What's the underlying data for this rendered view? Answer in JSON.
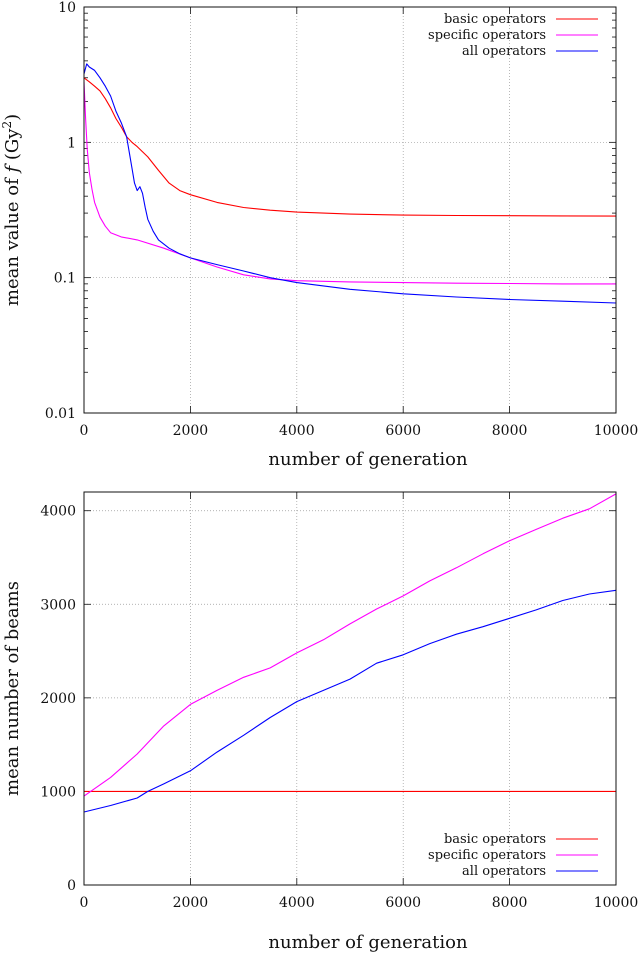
{
  "chart_data": [
    {
      "type": "line",
      "xlabel": "number of generation",
      "ylabel_parts": [
        "mean value of ",
        "f",
        " (Gy",
        "2",
        ")"
      ],
      "xlim": [
        0,
        10000
      ],
      "ylim": [
        0.01,
        10
      ],
      "yscale": "log",
      "grid": true,
      "legend": "top-right",
      "xticks": [
        0,
        2000,
        4000,
        6000,
        8000,
        10000
      ],
      "xtick_labels": [
        "0",
        "2000",
        "4000",
        "6000",
        "8000",
        "10000"
      ],
      "yticks": [
        0.01,
        0.1,
        1,
        10
      ],
      "ytick_labels": [
        "0.01",
        "0.1",
        "1",
        "10"
      ],
      "series": [
        {
          "name": "basic operators",
          "color": "#ff0000",
          "x": [
            0,
            100,
            200,
            300,
            400,
            500,
            600,
            700,
            800,
            900,
            1000,
            1200,
            1400,
            1600,
            1800,
            2000,
            2500,
            3000,
            3500,
            4000,
            5000,
            6000,
            7000,
            8000,
            9000,
            10000
          ],
          "y": [
            3.0,
            2.8,
            2.6,
            2.4,
            2.1,
            1.8,
            1.5,
            1.3,
            1.1,
            1.0,
            0.93,
            0.78,
            0.62,
            0.5,
            0.44,
            0.41,
            0.36,
            0.33,
            0.315,
            0.305,
            0.295,
            0.29,
            0.288,
            0.287,
            0.286,
            0.285
          ]
        },
        {
          "name": "specific operators",
          "color": "#ff00ff",
          "x": [
            0,
            30,
            60,
            100,
            150,
            200,
            300,
            400,
            500,
            700,
            1000,
            1500,
            2000,
            2500,
            3000,
            3500,
            4000,
            5000,
            6000,
            7000,
            8000,
            9000,
            10000
          ],
          "y": [
            2.8,
            1.5,
            0.9,
            0.6,
            0.45,
            0.36,
            0.28,
            0.24,
            0.215,
            0.2,
            0.19,
            0.165,
            0.14,
            0.12,
            0.105,
            0.098,
            0.095,
            0.093,
            0.092,
            0.091,
            0.0905,
            0.09,
            0.09
          ]
        },
        {
          "name": "all operators",
          "color": "#0000ff",
          "x": [
            0,
            50,
            100,
            200,
            300,
            400,
            500,
            600,
            700,
            800,
            850,
            900,
            950,
            1000,
            1050,
            1100,
            1150,
            1200,
            1300,
            1400,
            1600,
            1800,
            2000,
            2500,
            3000,
            3500,
            4000,
            5000,
            6000,
            7000,
            8000,
            9000,
            10000
          ],
          "y": [
            3.2,
            3.8,
            3.6,
            3.4,
            3.0,
            2.6,
            2.2,
            1.7,
            1.4,
            1.1,
            0.85,
            0.65,
            0.5,
            0.44,
            0.47,
            0.42,
            0.33,
            0.27,
            0.22,
            0.19,
            0.165,
            0.15,
            0.14,
            0.125,
            0.112,
            0.1,
            0.092,
            0.082,
            0.076,
            0.072,
            0.069,
            0.067,
            0.065
          ]
        }
      ]
    },
    {
      "type": "line",
      "xlabel": "number of generation",
      "ylabel": "mean number of beams",
      "xlim": [
        0,
        10000
      ],
      "ylim": [
        0,
        4200
      ],
      "grid": true,
      "legend": "bottom-right",
      "xticks": [
        0,
        2000,
        4000,
        6000,
        8000,
        10000
      ],
      "xtick_labels": [
        "0",
        "2000",
        "4000",
        "6000",
        "8000",
        "10000"
      ],
      "yticks": [
        0,
        1000,
        2000,
        3000,
        4000
      ],
      "ytick_labels": [
        "0",
        "1000",
        "2000",
        "3000",
        "4000"
      ],
      "series": [
        {
          "name": "basic operators",
          "color": "#ff0000",
          "x": [
            0,
            10000
          ],
          "y": [
            1000,
            1000
          ]
        },
        {
          "name": "specific operators",
          "color": "#ff00ff",
          "x": [
            0,
            500,
            1000,
            1500,
            2000,
            2500,
            3000,
            3500,
            4000,
            4500,
            5000,
            5500,
            6000,
            6500,
            7000,
            7500,
            8000,
            8500,
            9000,
            9500,
            10000
          ],
          "y": [
            950,
            1150,
            1400,
            1700,
            1930,
            2080,
            2220,
            2320,
            2480,
            2620,
            2790,
            2950,
            3090,
            3250,
            3390,
            3540,
            3680,
            3800,
            3920,
            4020,
            4180
          ]
        },
        {
          "name": "all operators",
          "color": "#0000ff",
          "x": [
            0,
            500,
            1000,
            1200,
            1500,
            2000,
            2500,
            3000,
            3500,
            4000,
            4500,
            5000,
            5500,
            6000,
            6500,
            7000,
            7500,
            8000,
            8500,
            9000,
            9500,
            10000
          ],
          "y": [
            780,
            850,
            930,
            1000,
            1080,
            1220,
            1420,
            1600,
            1790,
            1960,
            2080,
            2200,
            2370,
            2460,
            2580,
            2680,
            2760,
            2850,
            2940,
            3040,
            3110,
            3150
          ]
        }
      ]
    }
  ]
}
